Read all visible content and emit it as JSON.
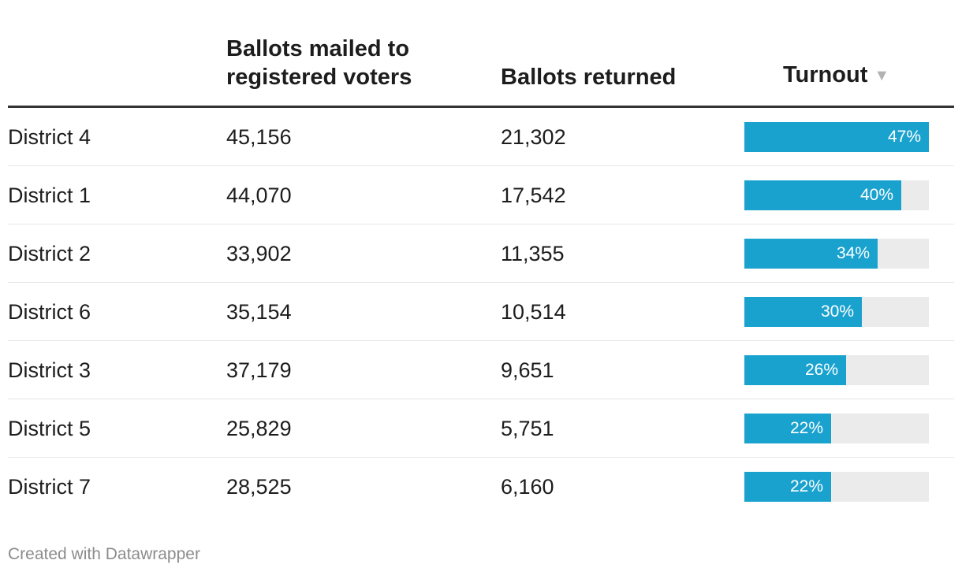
{
  "chart_data": {
    "type": "table",
    "columns": [
      "",
      "Ballots mailed to registered voters",
      "Ballots returned",
      "Turnout"
    ],
    "sort": {
      "column": "Turnout",
      "direction": "descending"
    },
    "rows": [
      {
        "district": "District 4",
        "mailed": "45,156",
        "returned": "21,302",
        "turnout": 47,
        "turnout_label": "47%"
      },
      {
        "district": "District 1",
        "mailed": "44,070",
        "returned": "17,542",
        "turnout": 40,
        "turnout_label": "40%"
      },
      {
        "district": "District 2",
        "mailed": "33,902",
        "returned": "11,355",
        "turnout": 34,
        "turnout_label": "34%"
      },
      {
        "district": "District 6",
        "mailed": "35,154",
        "returned": "10,514",
        "turnout": 30,
        "turnout_label": "30%"
      },
      {
        "district": "District 3",
        "mailed": "37,179",
        "returned": "9,651",
        "turnout": 26,
        "turnout_label": "26%"
      },
      {
        "district": "District 5",
        "mailed": "25,829",
        "returned": "5,751",
        "turnout": 22,
        "turnout_label": "22%"
      },
      {
        "district": "District 7",
        "mailed": "28,525",
        "returned": "6,160",
        "turnout": 22,
        "turnout_label": "22%"
      }
    ],
    "turnout_max": 47,
    "bar_color": "#1aa2cf",
    "track_color": "#ebebeb"
  },
  "header": {
    "mailed": "Ballots mailed to registered voters",
    "returned": "Ballots returned",
    "turnout": "Turnout",
    "sort_icon": "▼"
  },
  "footer": {
    "credit": "Created with Datawrapper"
  }
}
